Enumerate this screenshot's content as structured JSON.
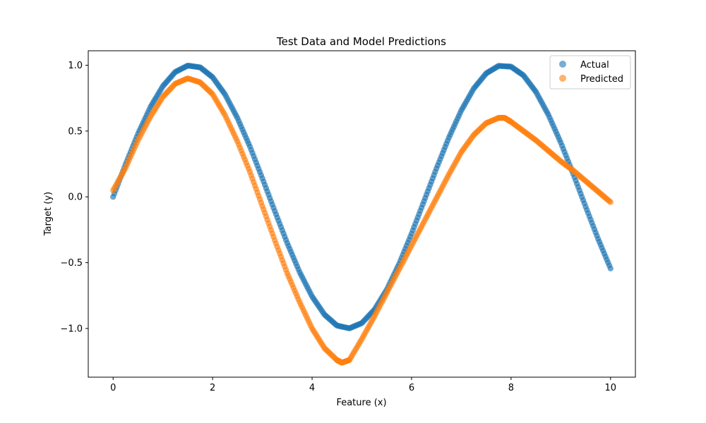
{
  "chart_data": {
    "type": "scatter",
    "title": "Test Data and Model Predictions",
    "xlabel": "Feature (x)",
    "ylabel": "Target (y)",
    "xlim": [
      -0.5,
      10.5
    ],
    "ylim": [
      -1.37,
      1.11
    ],
    "x_ticks": [
      0,
      2,
      4,
      6,
      8,
      10
    ],
    "x_tick_labels": [
      "0",
      "2",
      "4",
      "6",
      "8",
      "10"
    ],
    "y_ticks": [
      -1.0,
      -0.5,
      0.0,
      0.5,
      1.0
    ],
    "y_tick_labels": [
      "−1.0",
      "−0.5",
      "0.0",
      "0.5",
      "1.0"
    ],
    "grid": false,
    "legend_position": "top-right",
    "series": [
      {
        "name": "Actual",
        "color": "#1f77b4",
        "x": [
          0.0,
          0.25,
          0.5,
          0.75,
          1.0,
          1.25,
          1.5,
          1.75,
          2.0,
          2.25,
          2.5,
          2.75,
          3.0,
          3.25,
          3.5,
          3.75,
          4.0,
          4.25,
          4.5,
          4.75,
          5.0,
          5.25,
          5.5,
          5.75,
          6.0,
          6.25,
          6.5,
          6.75,
          7.0,
          7.25,
          7.5,
          7.75,
          8.0,
          8.25,
          8.5,
          8.75,
          9.0,
          9.25,
          9.5,
          9.75,
          10.0
        ],
        "y": [
          0.0,
          0.247,
          0.479,
          0.682,
          0.841,
          0.949,
          0.997,
          0.984,
          0.909,
          0.778,
          0.598,
          0.382,
          0.141,
          -0.108,
          -0.351,
          -0.572,
          -0.757,
          -0.895,
          -0.978,
          -0.999,
          -0.959,
          -0.859,
          -0.706,
          -0.509,
          -0.279,
          -0.033,
          0.215,
          0.45,
          0.657,
          0.823,
          0.938,
          0.995,
          0.989,
          0.923,
          0.798,
          0.624,
          0.412,
          0.174,
          -0.075,
          -0.319,
          -0.544
        ]
      },
      {
        "name": "Predicted",
        "color": "#ff7f0e",
        "x": [
          0.0,
          0.25,
          0.5,
          0.75,
          1.0,
          1.25,
          1.5,
          1.75,
          2.0,
          2.25,
          2.5,
          2.75,
          3.0,
          3.25,
          3.5,
          3.75,
          4.0,
          4.25,
          4.5,
          4.6,
          4.75,
          5.0,
          5.25,
          5.5,
          5.75,
          6.0,
          6.25,
          6.5,
          6.75,
          7.0,
          7.25,
          7.5,
          7.75,
          7.87,
          8.0,
          8.25,
          8.5,
          8.75,
          9.0,
          9.25,
          9.5,
          9.75,
          10.0
        ],
        "y": [
          0.05,
          0.22,
          0.43,
          0.61,
          0.76,
          0.86,
          0.9,
          0.87,
          0.78,
          0.62,
          0.42,
          0.19,
          -0.07,
          -0.33,
          -0.58,
          -0.8,
          -1.0,
          -1.15,
          -1.24,
          -1.26,
          -1.24,
          -1.08,
          -0.91,
          -0.73,
          -0.55,
          -0.37,
          -0.19,
          -0.01,
          0.17,
          0.34,
          0.47,
          0.56,
          0.6,
          0.6,
          0.57,
          0.5,
          0.43,
          0.35,
          0.27,
          0.2,
          0.12,
          0.04,
          -0.04
        ]
      }
    ]
  }
}
